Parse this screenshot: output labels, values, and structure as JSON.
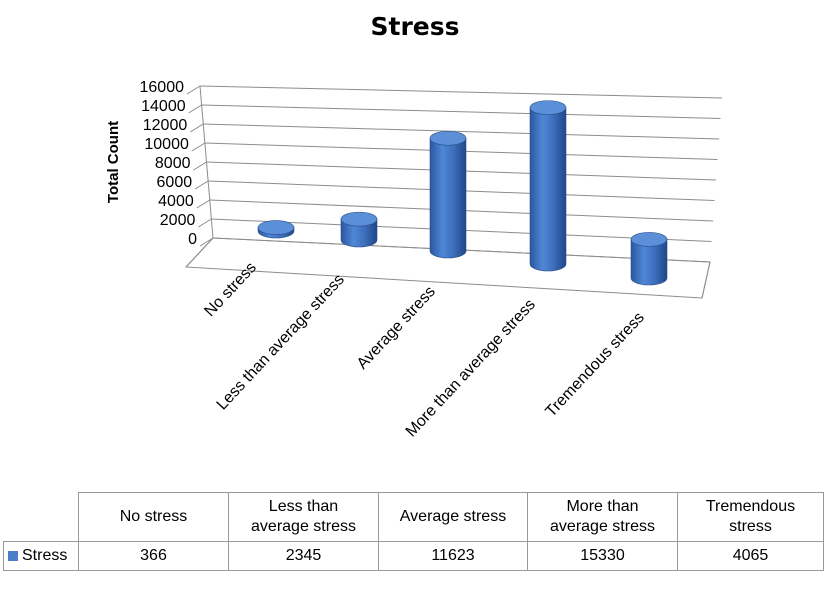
{
  "chart_data": {
    "type": "bar",
    "title": "Stress",
    "ylabel": "Total Count",
    "xlabel": "",
    "ylim": [
      0,
      16000
    ],
    "y_ticks": [
      0,
      2000,
      4000,
      6000,
      8000,
      10000,
      12000,
      14000,
      16000
    ],
    "categories": [
      "No stress",
      "Less than average stress",
      "Average stress",
      "More than average stress",
      "Tremendous stress"
    ],
    "series": [
      {
        "name": "Stress",
        "values": [
          366,
          2345,
          11623,
          15330,
          4065
        ],
        "color": "#4a7ec8"
      }
    ],
    "grid": true,
    "legend": "table"
  },
  "table": {
    "header_lines": [
      [
        "No stress"
      ],
      [
        "Less than",
        "average stress"
      ],
      [
        "Average stress"
      ],
      [
        "More than",
        "average stress"
      ],
      [
        "Tremendous",
        "stress"
      ]
    ],
    "series_label": "Stress",
    "values": [
      "366",
      "2345",
      "11623",
      "15330",
      "4065"
    ],
    "swatch_color": "#4a7ec8"
  }
}
